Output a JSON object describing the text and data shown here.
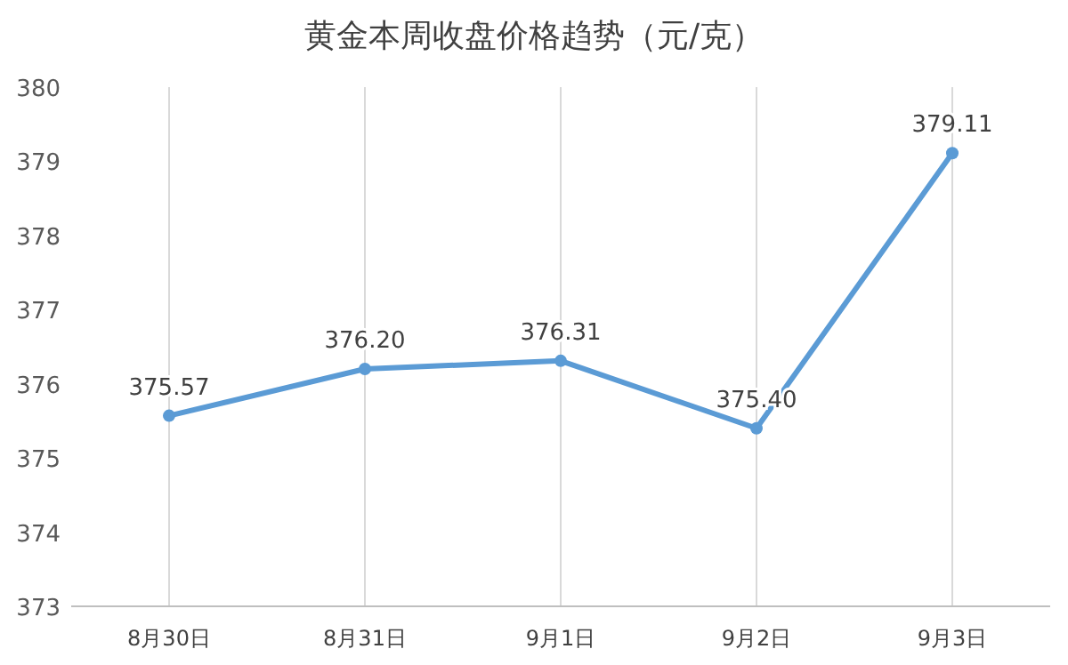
{
  "chart_data": {
    "type": "line",
    "title": "黄金本周收盘价格趋势（元/克）",
    "categories": [
      "8月30日",
      "8月31日",
      "9月1日",
      "9月2日",
      "9月3日"
    ],
    "series": [
      {
        "color": "#5b9bd5",
        "values": [
          375.57,
          376.2,
          376.31,
          375.4,
          379.11
        ]
      }
    ],
    "value_labels": [
      "375.57",
      "376.20",
      "376.31",
      "375.40",
      "379.11"
    ],
    "ylim": [
      373,
      380
    ],
    "yticks": [
      373,
      374,
      375,
      376,
      377,
      378,
      379,
      380
    ],
    "grid": "x",
    "marker": "circle",
    "line_style": "solid"
  }
}
